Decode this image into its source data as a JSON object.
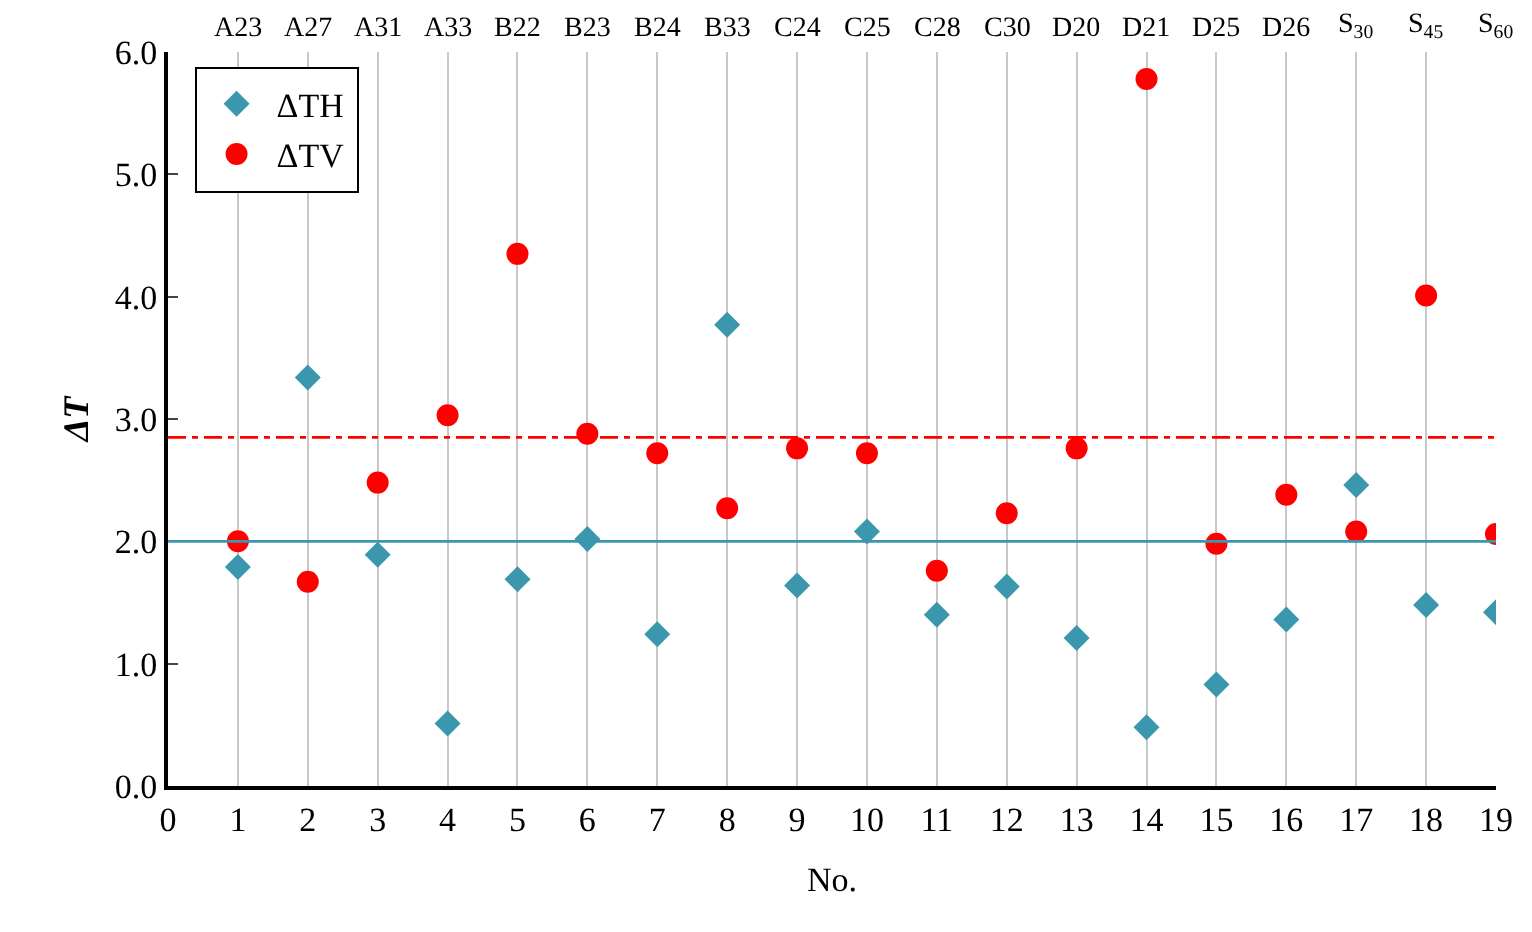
{
  "chart_data": {
    "type": "scatter",
    "x": [
      1,
      2,
      3,
      4,
      5,
      6,
      7,
      8,
      9,
      10,
      11,
      12,
      13,
      14,
      15,
      16,
      17,
      18,
      19
    ],
    "series": [
      {
        "name": "ΔTH",
        "color": "#3a97ad",
        "marker": "diamond",
        "values": [
          1.79,
          3.34,
          1.89,
          0.51,
          1.69,
          2.02,
          1.24,
          3.77,
          1.64,
          2.08,
          1.4,
          1.63,
          1.21,
          0.48,
          0.83,
          1.36,
          2.46,
          1.48,
          1.42
        ]
      },
      {
        "name": "ΔTV",
        "color": "#ff0000",
        "marker": "circle",
        "values": [
          2.0,
          1.67,
          2.48,
          3.03,
          4.35,
          2.88,
          2.72,
          2.27,
          2.76,
          2.72,
          1.76,
          2.23,
          2.76,
          5.78,
          1.98,
          2.38,
          2.08,
          4.01,
          2.06
        ]
      }
    ],
    "xlabel": "No.",
    "ylabel": "ΔT",
    "xlim": [
      0,
      19
    ],
    "xticks": [
      0,
      1,
      2,
      3,
      4,
      5,
      6,
      7,
      8,
      9,
      10,
      11,
      12,
      13,
      14,
      15,
      16,
      17,
      18,
      19
    ],
    "ylim": [
      0,
      6
    ],
    "yticks": [
      {
        "value": 0,
        "label": "0.0"
      },
      {
        "value": 1,
        "label": "1.0"
      },
      {
        "value": 2,
        "label": "2.0"
      },
      {
        "value": 3,
        "label": "3.0"
      },
      {
        "value": 4,
        "label": "4.0"
      },
      {
        "value": 5,
        "label": "5.0"
      },
      {
        "value": 6,
        "label": "6.0"
      }
    ],
    "annotations": [
      "A23",
      "A27",
      "A31",
      "A33",
      "B22",
      "B23",
      "B24",
      "B33",
      "C24",
      "C25",
      "C28",
      "C30",
      "D20",
      "D21",
      "D25",
      "D26",
      "S$_{30}$",
      "S$_{45}$",
      "S$_{60}$"
    ],
    "ref_lines": [
      {
        "axis": "y",
        "value": 2.0,
        "color": "#3a97ad",
        "line_style": "solid"
      },
      {
        "axis": "y",
        "value": 2.85,
        "color": "#ff0000",
        "line_style": "dashdot"
      }
    ],
    "grid": "x",
    "legend": "top left"
  }
}
